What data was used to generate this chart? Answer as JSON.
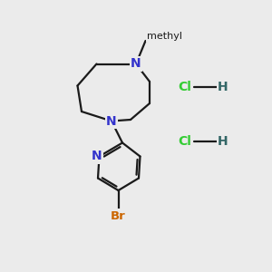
{
  "background_color": "#ebebeb",
  "bond_color": "#1a1a1a",
  "N_color": "#3333cc",
  "Br_color": "#cc6600",
  "Cl_color": "#33cc33",
  "H_color": "#336666",
  "N_label": "N",
  "Br_label": "Br",
  "Cl_label": "Cl",
  "H_label": "H",
  "methyl_label": "methyl",
  "figsize": [
    3.0,
    3.0
  ],
  "dpi": 100,
  "lw": 1.6
}
